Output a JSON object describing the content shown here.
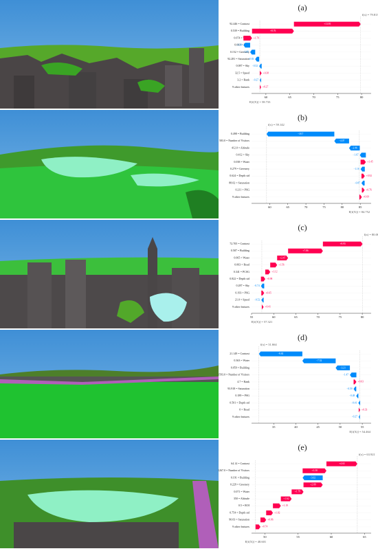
{
  "chart_data": [
    {
      "type": "waterfall",
      "panel": "(a)",
      "fx_label": "f(x) = 79.813",
      "base": 58.733,
      "base_label": "E[f(X)] = 58.733",
      "categories": [
        "92.446 = Contrast",
        "0.539 = Building",
        "0.074 = Water",
        "0.041 = Road",
        "0.152 = Greenery",
        "92.281 = Saturation",
        "0.087 = Sky",
        "32.5 = Speed",
        "3.2 = Rank",
        "9 other features"
      ],
      "values": [
        13.95,
        8.76,
        1.79,
        -1.39,
        -1.06,
        -0.83,
        -0.52,
        0.38,
        -0.27,
        0.27
      ],
      "value_labels": [
        "+13.95",
        "+8.76",
        "+1.79",
        "−1.39",
        "−1.06",
        "−0.83",
        "−0.52",
        "+0.38",
        "−0.27",
        "+0.27"
      ],
      "xlim": [
        57,
        82
      ],
      "xticks": [
        60,
        65,
        70,
        75,
        80
      ]
    },
    {
      "type": "waterfall",
      "panel": "(b)",
      "fx_label": "f(x) = 59.142",
      "base": 84.752,
      "base_label": "E[f(X)] = 84.752",
      "categories": [
        "0.498 = Building",
        "583.0 = Number of Visitors",
        "412.0 = Altitude",
        "0.412 = Sky",
        "0.038 = Water",
        "0.279 = Greenery",
        "0.624 = Depth std",
        "88.02 = Saturation",
        "0.211 = PSG",
        "9 other features"
      ],
      "values": [
        -18.7,
        -4.07,
        -2.96,
        -1.67,
        1.45,
        -1.16,
        0.92,
        -0.87,
        0.76,
        0.69
      ],
      "value_labels": [
        "−18.7",
        "−4.07",
        "−2.96",
        "−1.67",
        "+1.45",
        "−1.16",
        "+0.92",
        "−0.87",
        "+0.76",
        "+0.69"
      ],
      "xlim": [
        55,
        88
      ],
      "xticks": [
        60,
        65,
        70,
        75,
        80,
        85
      ]
    },
    {
      "type": "waterfall",
      "panel": "(c)",
      "fx_label": "f(x) = 80.061",
      "base": 57.321,
      "base_label": "E[f(X)] = 57.321",
      "categories": [
        "72.705 = Contrast",
        "0.587 = Building",
        "0.065 = Water",
        "0.063 = Road",
        "0.341 = PCSG",
        "0.822 = Depth std",
        "0.287 = Sky",
        "0.193 = PSG",
        "21.0 = Speed",
        "9 other features"
      ],
      "values": [
        8.95,
        7.86,
        2.47,
        1.56,
        1.12,
        0.98,
        -0.74,
        0.65,
        -0.52,
        0.41
      ],
      "value_labels": [
        "+8.95",
        "+7.86",
        "+2.47",
        "+1.56",
        "+1.12",
        "+0.98",
        "−0.74",
        "+0.65",
        "−0.52",
        "+0.41"
      ],
      "xlim": [
        55,
        82
      ],
      "xticks": [
        55,
        60,
        65,
        70,
        75,
        80
      ]
    },
    {
      "type": "waterfall",
      "panel": "(d)",
      "fx_label": "f(x) = 31.664",
      "base": 54.464,
      "base_label": "E[f(X)] = 54.464",
      "categories": [
        "21.149 = Contrast",
        "0.363 = Water",
        "0.059 = Building",
        "1593.0 = Number of Visitors",
        "4.7 = Rank",
        "93.918 = Saturation",
        "0.189 = PSG",
        "0.501 = Depth std",
        "0 = Road",
        "9 other features"
      ],
      "values": [
        -9.81,
        -7.52,
        -3.21,
        -1.47,
        0.63,
        -0.59,
        -0.48,
        -0.41,
        0.33,
        -0.27
      ],
      "value_labels": [
        "−9.81",
        "−7.52",
        "−3.21",
        "−1.47",
        "+0.63",
        "−0.59",
        "−0.48",
        "−0.41",
        "+0.33",
        "−0.27"
      ],
      "xlim": [
        30,
        57
      ],
      "xticks": [
        35,
        40,
        45,
        50,
        55
      ]
    },
    {
      "type": "waterfall",
      "panel": "(e)",
      "fx_label": "f(x) = 63.921",
      "base": 48.601,
      "base_label": "E[f(X)] = 48.601",
      "categories": [
        "64.14 = Contrast",
        "1267.0 = Number of Visitors",
        "0.191 = Building",
        "0.229 = Greenery",
        "0.071 = Water",
        "350 = Altitude",
        "0.5 = ROI",
        "0.754 = Depth std",
        "90.03 = Saturation",
        "9 other features"
      ],
      "values": [
        4.65,
        3.58,
        -3.02,
        2.89,
        1.79,
        1.62,
        1.19,
        1.02,
        0.86,
        0.74
      ],
      "value_labels": [
        "+4.65",
        "+3.58",
        "−3.02",
        "+2.89",
        "+1.79",
        "+1.62",
        "+1.19",
        "+1.02",
        "+0.86",
        "+0.74"
      ],
      "xlim": [
        48,
        66
      ],
      "xticks": [
        50,
        55,
        60,
        65
      ]
    }
  ]
}
